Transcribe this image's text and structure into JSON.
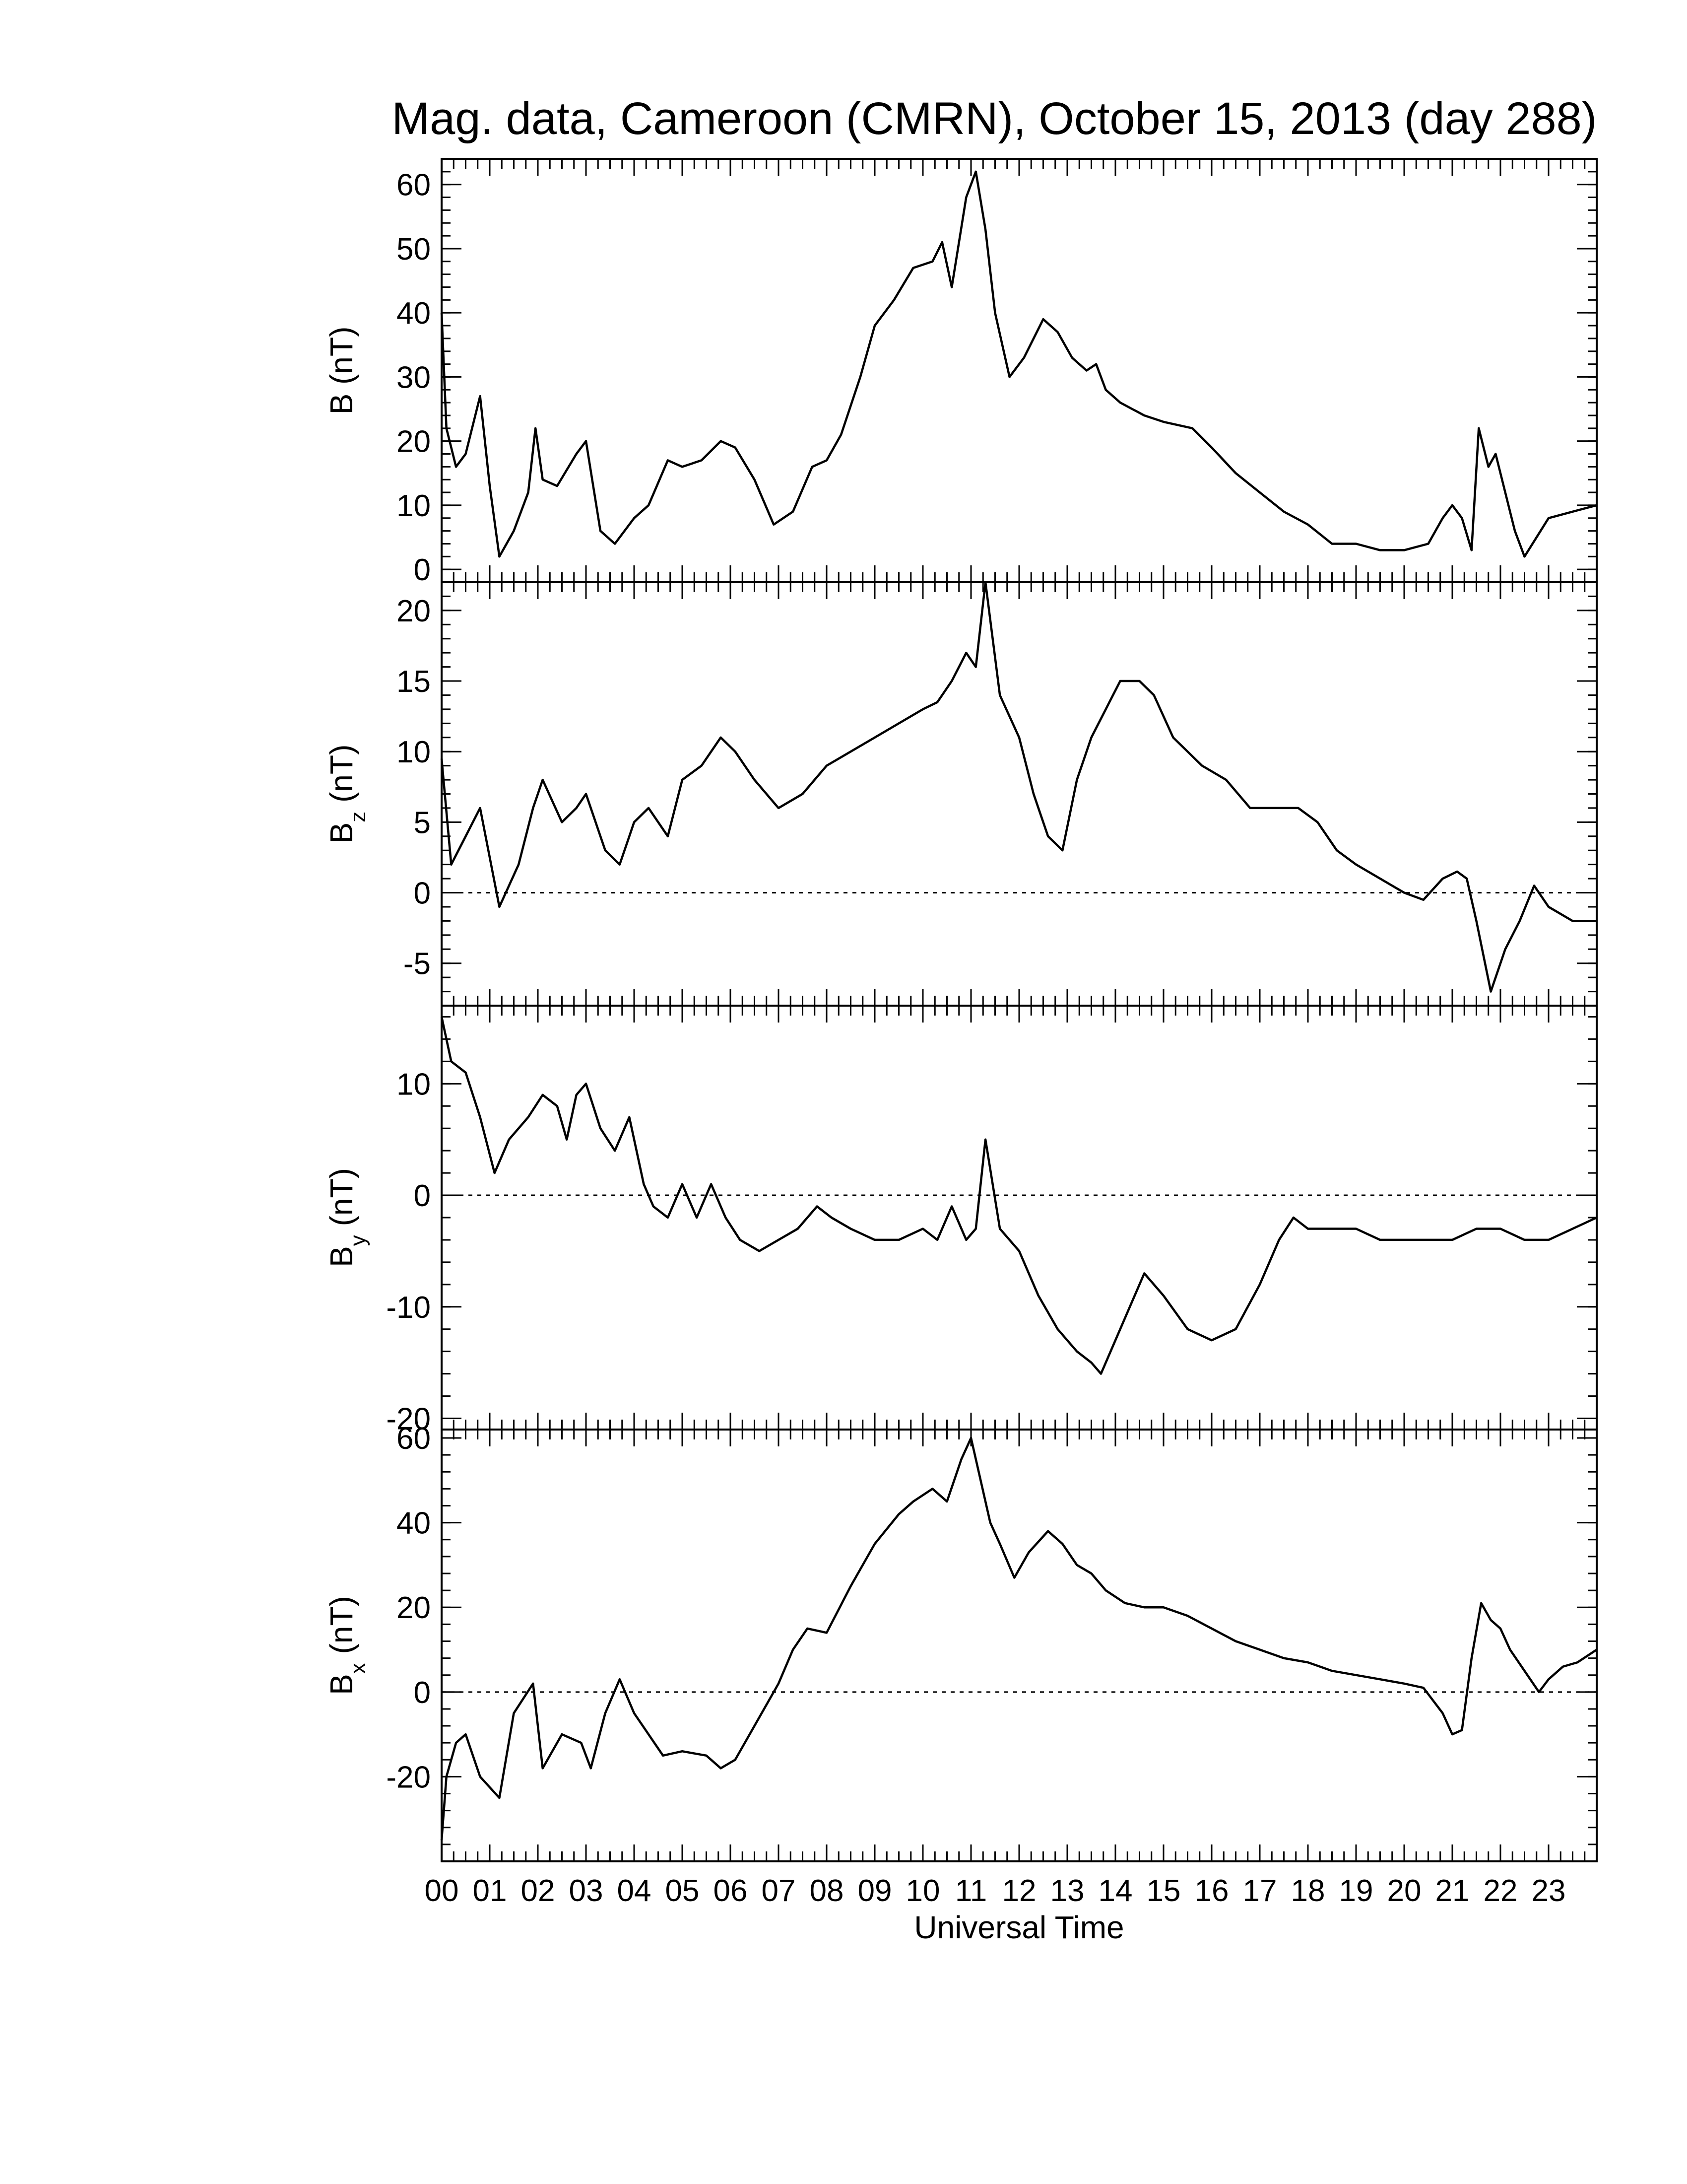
{
  "figure": {
    "title": "Mag. data, Cameroon (CMRN), October 15, 2013 (day 288)",
    "xlabel": "Universal Time"
  },
  "chart_data": [
    {
      "type": "line",
      "panel": "B",
      "ylabel": "B (nT)",
      "ylim": [
        -2,
        64
      ],
      "yticks": [
        0,
        10,
        20,
        30,
        40,
        50,
        60
      ],
      "zero_line": false,
      "x_unit": "hours UT",
      "xlim": [
        0,
        24
      ],
      "x": [
        0,
        0.1,
        0.3,
        0.5,
        0.8,
        1.0,
        1.2,
        1.5,
        1.8,
        1.95,
        2.1,
        2.4,
        2.8,
        3.0,
        3.3,
        3.6,
        4.0,
        4.3,
        4.7,
        5.0,
        5.4,
        5.8,
        6.1,
        6.5,
        6.9,
        7.3,
        7.7,
        8.0,
        8.3,
        8.7,
        9.0,
        9.4,
        9.8,
        10.2,
        10.4,
        10.6,
        10.9,
        11.1,
        11.3,
        11.5,
        11.8,
        12.1,
        12.5,
        12.8,
        13.1,
        13.4,
        13.6,
        13.8,
        14.1,
        14.6,
        15.0,
        15.6,
        16.0,
        16.5,
        17.0,
        17.5,
        18.0,
        18.5,
        19.0,
        19.5,
        20.0,
        20.5,
        20.8,
        21.0,
        21.2,
        21.4,
        21.55,
        21.75,
        21.9,
        22.1,
        22.3,
        22.5,
        22.75,
        23.0,
        23.5,
        24.0
      ],
      "values": [
        40,
        22,
        16,
        18,
        27,
        13,
        2,
        6,
        12,
        22,
        14,
        13,
        18,
        20,
        6,
        4,
        8,
        10,
        17,
        16,
        17,
        20,
        19,
        14,
        7,
        9,
        16,
        17,
        21,
        30,
        38,
        42,
        47,
        48,
        51,
        44,
        58,
        62,
        53,
        40,
        30,
        33,
        39,
        37,
        33,
        31,
        32,
        28,
        26,
        24,
        23,
        22,
        19,
        15,
        12,
        9,
        7,
        4,
        4,
        3,
        3,
        4,
        8,
        10,
        8,
        3,
        22,
        16,
        18,
        12,
        6,
        2,
        5,
        8,
        9,
        10
      ]
    },
    {
      "type": "line",
      "panel": "Bz",
      "ylabel": "B_z (nT)",
      "ylim": [
        -8,
        22
      ],
      "yticks": [
        -5,
        0,
        5,
        10,
        15,
        20
      ],
      "zero_line": true,
      "x_unit": "hours UT",
      "xlim": [
        0,
        24
      ],
      "x": [
        0,
        0.2,
        0.5,
        0.8,
        1.2,
        1.6,
        1.9,
        2.1,
        2.5,
        2.8,
        3.0,
        3.4,
        3.7,
        4.0,
        4.3,
        4.7,
        5.0,
        5.4,
        5.8,
        6.1,
        6.5,
        7.0,
        7.5,
        8.0,
        8.5,
        9.0,
        9.5,
        10.0,
        10.3,
        10.6,
        10.9,
        11.1,
        11.3,
        11.6,
        12.0,
        12.3,
        12.6,
        12.9,
        13.2,
        13.5,
        13.8,
        14.1,
        14.5,
        14.8,
        15.2,
        15.8,
        16.3,
        16.8,
        17.3,
        17.8,
        18.2,
        18.6,
        19.0,
        19.5,
        20.0,
        20.4,
        20.8,
        21.1,
        21.3,
        21.5,
        21.8,
        22.1,
        22.4,
        22.7,
        23.0,
        23.5,
        24.0
      ],
      "values": [
        9.5,
        2,
        4,
        6,
        -1,
        2,
        6,
        8,
        5,
        6,
        7,
        3,
        2,
        5,
        6,
        4,
        8,
        9,
        11,
        10,
        8,
        6,
        7,
        9,
        10,
        11,
        12,
        13,
        13.5,
        15,
        17,
        16,
        22,
        14,
        11,
        7,
        4,
        3,
        8,
        11,
        13,
        15,
        15,
        14,
        11,
        9,
        8,
        6,
        6,
        6,
        5,
        3,
        2,
        1,
        0,
        -0.5,
        1,
        1.5,
        1,
        -2,
        -7,
        -4,
        -2,
        0.5,
        -1,
        -2,
        -2
      ]
    },
    {
      "type": "line",
      "panel": "By",
      "ylabel": "B_y (nT)",
      "ylim": [
        -21,
        17
      ],
      "yticks": [
        -20,
        -10,
        0,
        10
      ],
      "zero_line": true,
      "x_unit": "hours UT",
      "xlim": [
        0,
        24
      ],
      "x": [
        0,
        0.2,
        0.5,
        0.8,
        1.1,
        1.4,
        1.8,
        2.1,
        2.4,
        2.6,
        2.8,
        3.0,
        3.3,
        3.6,
        3.9,
        4.2,
        4.4,
        4.7,
        5.0,
        5.3,
        5.6,
        5.9,
        6.2,
        6.6,
        7.0,
        7.4,
        7.8,
        8.1,
        8.5,
        9.0,
        9.5,
        10.0,
        10.3,
        10.6,
        10.9,
        11.1,
        11.3,
        11.6,
        12.0,
        12.4,
        12.8,
        13.2,
        13.5,
        13.7,
        14.0,
        14.4,
        14.6,
        15.0,
        15.5,
        16.0,
        16.5,
        17.0,
        17.4,
        17.7,
        18.0,
        18.5,
        19.0,
        19.5,
        20.0,
        20.5,
        21.0,
        21.5,
        22.0,
        22.5,
        23.0,
        23.5,
        24.0
      ],
      "values": [
        16,
        12,
        11,
        7,
        2,
        5,
        7,
        9,
        8,
        5,
        9,
        10,
        6,
        4,
        7,
        1,
        -1,
        -2,
        1,
        -2,
        1,
        -2,
        -4,
        -5,
        -4,
        -3,
        -1,
        -2,
        -3,
        -4,
        -4,
        -3,
        -4,
        -1,
        -4,
        -3,
        5,
        -3,
        -5,
        -9,
        -12,
        -14,
        -15,
        -16,
        -13,
        -9,
        -7,
        -9,
        -12,
        -13,
        -12,
        -8,
        -4,
        -2,
        -3,
        -3,
        -3,
        -4,
        -4,
        -4,
        -4,
        -3,
        -3,
        -4,
        -4,
        -3,
        -2
      ]
    },
    {
      "type": "line",
      "panel": "Bx",
      "ylabel": "B_x (nT)",
      "ylim": [
        -40,
        62
      ],
      "yticks": [
        -20,
        0,
        20,
        40,
        60
      ],
      "zero_line": true,
      "x_unit": "hours UT",
      "xlim": [
        0,
        24
      ],
      "x": [
        0,
        0.1,
        0.3,
        0.5,
        0.8,
        1.2,
        1.5,
        1.9,
        2.1,
        2.5,
        2.9,
        3.1,
        3.4,
        3.7,
        4.0,
        4.3,
        4.6,
        5.0,
        5.5,
        5.8,
        6.1,
        6.5,
        7.0,
        7.3,
        7.6,
        8.0,
        8.5,
        9.0,
        9.5,
        9.8,
        10.2,
        10.5,
        10.8,
        11.0,
        11.2,
        11.4,
        11.6,
        11.9,
        12.2,
        12.6,
        12.9,
        13.2,
        13.5,
        13.8,
        14.2,
        14.6,
        15.0,
        15.5,
        16.0,
        16.5,
        17.0,
        17.5,
        18.0,
        18.5,
        19.0,
        19.5,
        20.0,
        20.4,
        20.8,
        21.0,
        21.2,
        21.4,
        21.6,
        21.8,
        22.0,
        22.2,
        22.5,
        22.8,
        23.0,
        23.3,
        23.6,
        24.0
      ],
      "values": [
        -35,
        -20,
        -12,
        -10,
        -20,
        -25,
        -5,
        2,
        -18,
        -10,
        -12,
        -18,
        -5,
        3,
        -5,
        -10,
        -15,
        -14,
        -15,
        -18,
        -16,
        -8,
        2,
        10,
        15,
        14,
        25,
        35,
        42,
        45,
        48,
        45,
        55,
        60,
        50,
        40,
        35,
        27,
        33,
        38,
        35,
        30,
        28,
        24,
        21,
        20,
        20,
        18,
        15,
        12,
        10,
        8,
        7,
        5,
        4,
        3,
        2,
        1,
        -5,
        -10,
        -9,
        8,
        21,
        17,
        15,
        10,
        5,
        0,
        3,
        6,
        7,
        10
      ]
    }
  ],
  "xaxis": {
    "tick_labels": [
      "00",
      "01",
      "02",
      "03",
      "04",
      "05",
      "06",
      "07",
      "08",
      "09",
      "10",
      "11",
      "12",
      "13",
      "14",
      "15",
      "16",
      "17",
      "18",
      "19",
      "20",
      "21",
      "22",
      "23"
    ]
  }
}
